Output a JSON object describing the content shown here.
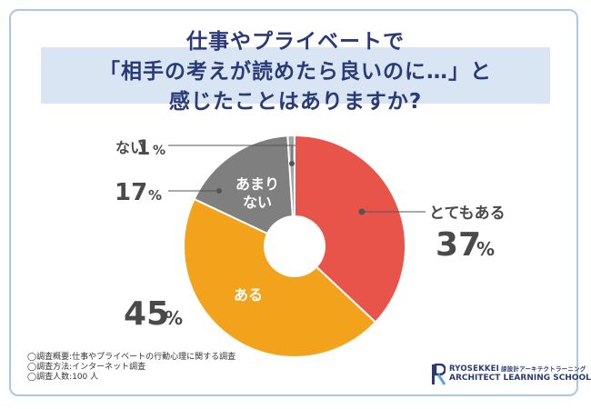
{
  "title": {
    "line1": "仕事やプライベートで",
    "line2": "「相手の考えが読めたら良いのに…」と",
    "line3": "感じたことはありますか?"
  },
  "chart_data": {
    "type": "pie",
    "style": "donut",
    "slices": [
      {
        "label": "とてもある",
        "value": 37,
        "color": "#e8534a"
      },
      {
        "label": "ある",
        "value": 45,
        "color": "#f2a31b"
      },
      {
        "label": "あまりない",
        "value": 17,
        "color": "#7f7f7f"
      },
      {
        "label": "ない",
        "value": 1,
        "color": "#a5a5a5"
      }
    ],
    "value_suffix": "%"
  },
  "labels": {
    "totemo": "とてもある",
    "totemo_value": "37",
    "aru": "ある",
    "aru_value": "45",
    "amari_line1": "あまり",
    "amari_line2": "ない",
    "amari_value": "17",
    "nai": "ない",
    "nai_value": "1",
    "pct": "%"
  },
  "notes": {
    "line1": "◯調査概要:仕事やプライベートの行動心理に関する調査",
    "line2": "◯調査方法:インターネット調査",
    "line3": "◯調査人数:100 人"
  },
  "logo": {
    "name": "RYOSEKKEI",
    "sub": "諒設計アーキテクトラーニング",
    "school": "ARCHITECT LEARNING SCHOOL"
  },
  "colors": {
    "title": "#2a3a78",
    "band": "#d9e5f2",
    "frame": "#a9c8e6"
  }
}
